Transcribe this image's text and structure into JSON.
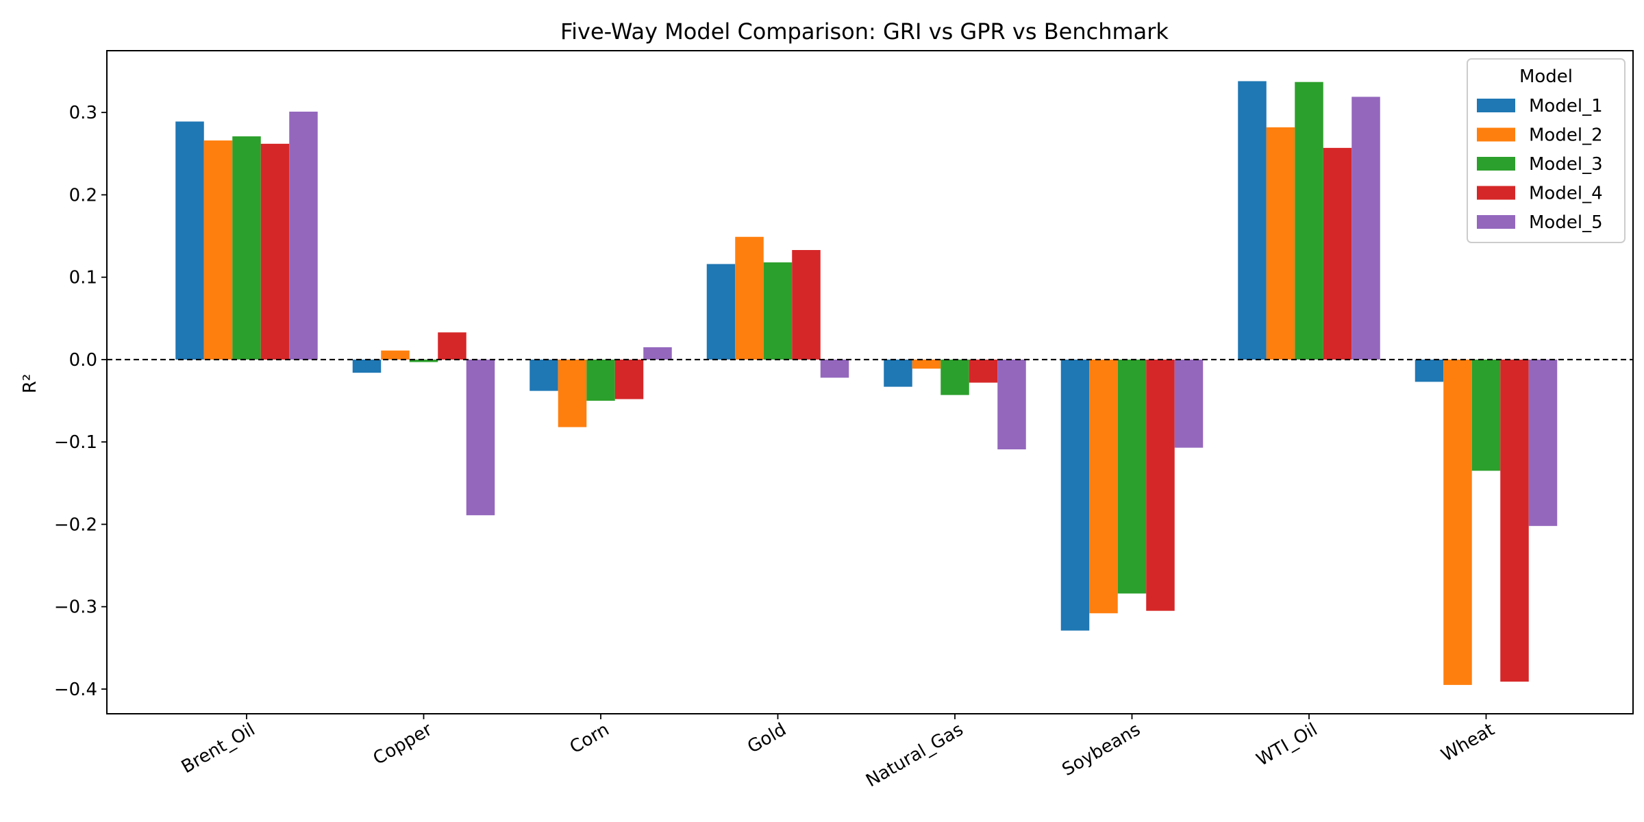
{
  "chart_data": {
    "type": "bar",
    "title": "Five-Way Model Comparison: GRI vs GPR vs Benchmark",
    "xlabel": "",
    "ylabel": "R²",
    "ylim": [
      -0.43,
      0.375
    ],
    "yticks": [
      -0.4,
      -0.3,
      -0.2,
      -0.1,
      0.0,
      0.1,
      0.2,
      0.3
    ],
    "ytick_labels": [
      "−0.4",
      "−0.3",
      "−0.2",
      "−0.1",
      "0.0",
      "0.1",
      "0.2",
      "0.3"
    ],
    "grid": false,
    "zero_line": "dashed",
    "legend": {
      "title": "Model",
      "placement": "top-right"
    },
    "categories": [
      "Brent_Oil",
      "Copper",
      "Corn",
      "Gold",
      "Natural_Gas",
      "Soybeans",
      "WTI_Oil",
      "Wheat"
    ],
    "series": [
      {
        "name": "Model_1",
        "color": "#1f77b4",
        "values": [
          0.289,
          -0.016,
          -0.038,
          0.116,
          -0.033,
          -0.329,
          0.338,
          -0.027
        ]
      },
      {
        "name": "Model_2",
        "color": "#ff7f0e",
        "values": [
          0.266,
          0.011,
          -0.082,
          0.149,
          -0.011,
          -0.308,
          0.282,
          -0.395
        ]
      },
      {
        "name": "Model_3",
        "color": "#2ca02c",
        "values": [
          0.271,
          -0.003,
          -0.05,
          0.118,
          -0.043,
          -0.284,
          0.337,
          -0.135
        ]
      },
      {
        "name": "Model_4",
        "color": "#d62728",
        "values": [
          0.262,
          0.033,
          -0.048,
          0.133,
          -0.028,
          -0.305,
          0.257,
          -0.391
        ]
      },
      {
        "name": "Model_5",
        "color": "#9467bd",
        "values": [
          0.301,
          -0.189,
          0.015,
          -0.022,
          -0.109,
          -0.107,
          0.319,
          -0.202
        ]
      }
    ]
  }
}
